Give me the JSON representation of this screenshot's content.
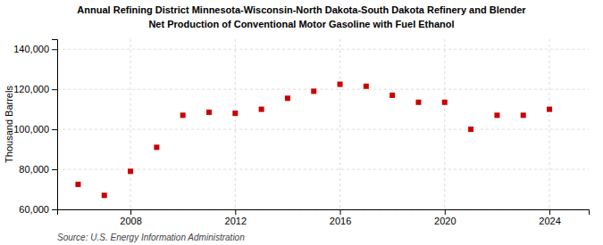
{
  "chart_data": {
    "type": "scatter",
    "title": "Annual Refining District Minnesota-Wisconsin-North Dakota-South Dakota Refinery and Blender",
    "subtitle": "Net Production of Conventional Motor Gasoline with Fuel Ethanol",
    "y_label": "Thousand Barrels",
    "annotation": "Source: U.S. Energy Information Administration",
    "x": [
      2006,
      2007,
      2008,
      2009,
      2010,
      2011,
      2012,
      2013,
      2014,
      2015,
      2016,
      2017,
      2018,
      2019,
      2020,
      2021,
      2022,
      2023,
      2024
    ],
    "values": [
      72500,
      67000,
      79000,
      91000,
      107000,
      108500,
      108000,
      110000,
      115500,
      119000,
      122500,
      121500,
      117000,
      113500,
      113500,
      100000,
      107000,
      107000,
      110000
    ],
    "color": "#cc0000",
    "marker": "square",
    "xlim": [
      2005.2,
      2025.5
    ],
    "xticks": [
      2008,
      2012,
      2016,
      2020,
      2024
    ],
    "ylim": [
      60000,
      145000
    ],
    "yticks": [
      {
        "value": 60000,
        "label": "60,000"
      },
      {
        "value": 80000,
        "label": "80,000"
      },
      {
        "value": 100000,
        "label": "100,000"
      },
      {
        "value": 120000,
        "label": "120,000"
      },
      {
        "value": 140000,
        "label": "140,000"
      }
    ],
    "grid": true
  }
}
